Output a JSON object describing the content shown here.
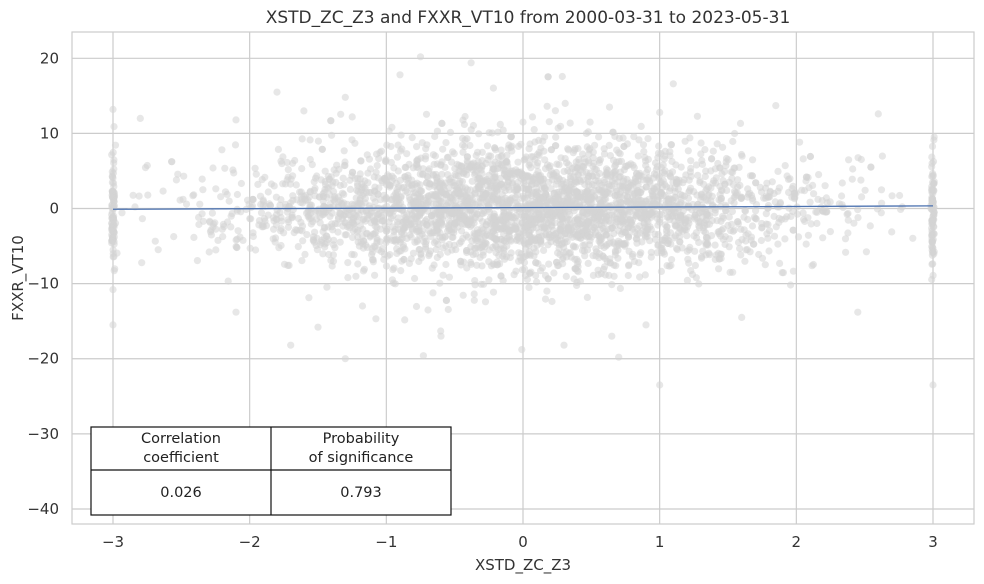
{
  "chart_data": {
    "type": "scatter",
    "title": "XSTD_ZC_Z3 and FXXR_VT10 from 2000-03-31 to 2023-05-31",
    "xlabel": "XSTD_ZC_Z3",
    "ylabel": "FXXR_VT10",
    "xlim": [
      -3.3,
      3.3
    ],
    "ylim": [
      -42,
      23.5
    ],
    "grid": true,
    "x_ticks": [
      -3,
      -2,
      -1,
      0,
      1,
      2,
      3
    ],
    "x_tick_labels": [
      "−3",
      "−2",
      "−1",
      "0",
      "1",
      "2",
      "3"
    ],
    "y_ticks": [
      20,
      10,
      0,
      -10,
      -20,
      -30,
      -40
    ],
    "y_tick_labels": [
      "20",
      "10",
      "0",
      "−10",
      "−20",
      "−30",
      "−40"
    ],
    "scatter_color": "#d3d3d3",
    "regression_color": "#4c72b0",
    "regression_line": {
      "x": [
        -3,
        3
      ],
      "y": [
        -0.1,
        0.35
      ]
    },
    "point_cloud": {
      "x_range": [
        -3,
        3
      ],
      "clipped_at": [
        -3,
        3
      ],
      "y_typical_spread": [
        -10,
        10
      ],
      "y_extreme_range": [
        -23.5,
        20.2
      ]
    },
    "notable_points": [
      {
        "x": -3.0,
        "y": 13.2
      },
      {
        "x": -3.0,
        "y": -15.5
      },
      {
        "x": -3.0,
        "y": -10.8
      },
      {
        "x": -2.8,
        "y": 12.0
      },
      {
        "x": -2.1,
        "y": 11.8
      },
      {
        "x": -1.8,
        "y": 15.5
      },
      {
        "x": -1.3,
        "y": 14.8
      },
      {
        "x": -1.25,
        "y": 12.2
      },
      {
        "x": -0.9,
        "y": 17.8
      },
      {
        "x": -0.75,
        "y": 20.2
      },
      {
        "x": -0.38,
        "y": 19.4
      },
      {
        "x": 0.0,
        "y": 11.5
      },
      {
        "x": 1.1,
        "y": 16.6
      },
      {
        "x": 1.0,
        "y": 12.8
      },
      {
        "x": 1.85,
        "y": 13.7
      },
      {
        "x": 2.6,
        "y": 12.6
      },
      {
        "x": -1.7,
        "y": -18.2
      },
      {
        "x": -1.3,
        "y": -20.0
      },
      {
        "x": -0.6,
        "y": -17.0
      },
      {
        "x": 0.7,
        "y": -19.8
      },
      {
        "x": 0.65,
        "y": -17.0
      },
      {
        "x": 1.0,
        "y": -23.5
      },
      {
        "x": 3.0,
        "y": -23.5
      },
      {
        "x": -2.1,
        "y": -13.8
      },
      {
        "x": 1.6,
        "y": -14.5
      },
      {
        "x": 2.45,
        "y": -13.8
      },
      {
        "x": 0.3,
        "y": -18.2
      },
      {
        "x": -1.5,
        "y": -15.8
      },
      {
        "x": 0.9,
        "y": -15.5
      }
    ]
  },
  "stats_table": {
    "headers": [
      [
        "Correlation",
        "coefficient"
      ],
      [
        "Probability",
        "of significance"
      ]
    ],
    "values": [
      "0.026",
      "0.793"
    ]
  }
}
